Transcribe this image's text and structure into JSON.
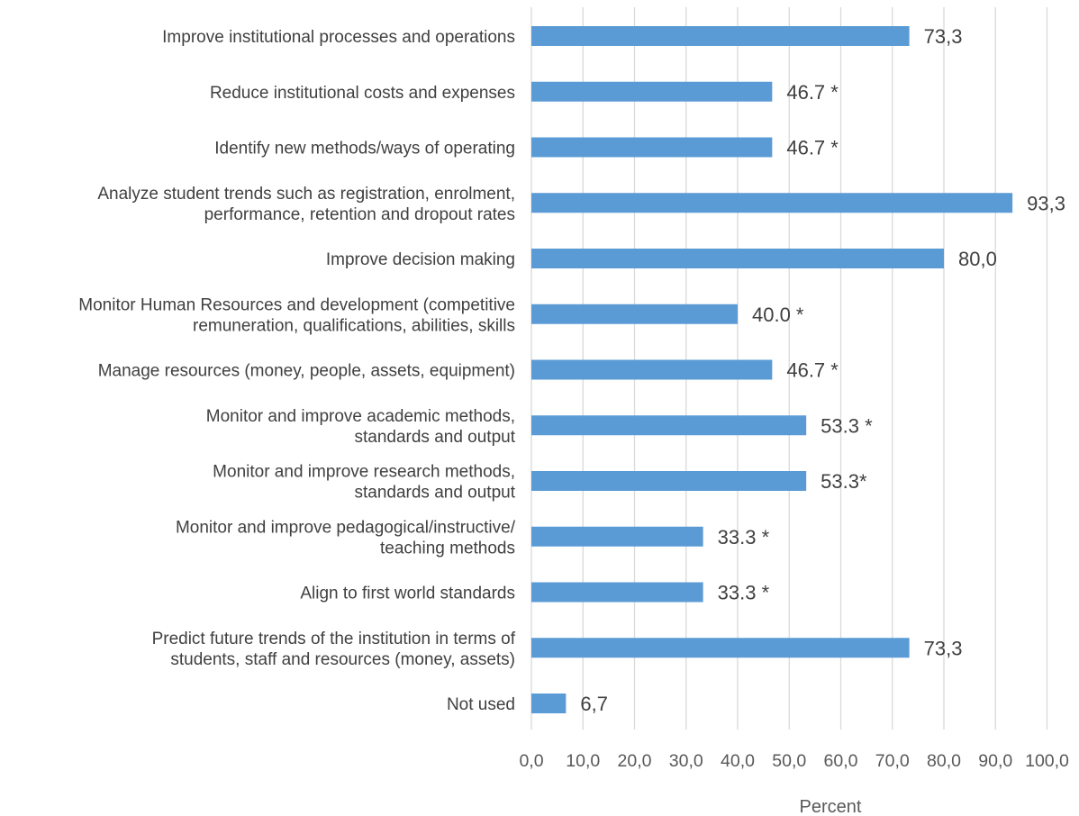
{
  "chart_data": {
    "type": "bar",
    "orientation": "horizontal",
    "categories": [
      [
        "Improve institutional processes and operations"
      ],
      [
        "Reduce institutional costs and expenses"
      ],
      [
        "Identify new methods/ways of operating"
      ],
      [
        "Analyze student trends such as registration, enrolment,",
        "performance, retention and dropout rates"
      ],
      [
        "Improve decision making"
      ],
      [
        "Monitor Human Resources and development (competitive",
        "remuneration, qualifications, abilities, skills"
      ],
      [
        "Manage resources (money, people, assets, equipment)"
      ],
      [
        "Monitor and improve academic methods,",
        "standards and output"
      ],
      [
        "Monitor and improve research methods,",
        "standards and output"
      ],
      [
        "Monitor and improve pedagogical/instructive/",
        "teaching methods"
      ],
      [
        "Align to first world standards"
      ],
      [
        "Predict future trends of the institution in terms of",
        "students, staff and resources (money, assets)"
      ],
      [
        "Not used"
      ]
    ],
    "values": [
      73.3,
      46.7,
      46.7,
      93.3,
      80.0,
      40.0,
      46.7,
      53.3,
      53.3,
      33.3,
      33.3,
      73.3,
      6.7
    ],
    "data_labels": [
      "73,3",
      "46.7 *",
      "46.7 *",
      "93,3",
      "80,0",
      "40.0 *",
      "46.7 *",
      "53.3 *",
      "53.3*",
      "33.3 *",
      "33.3 *",
      "73,3",
      "6,7"
    ],
    "xlim": [
      0,
      100
    ],
    "xticks": [
      0,
      10,
      20,
      30,
      40,
      50,
      60,
      70,
      80,
      90,
      100
    ],
    "xtick_labels": [
      "0,0",
      "10,0",
      "20,0",
      "30,0",
      "40,0",
      "50,0",
      "60,0",
      "70,0",
      "80,0",
      "90,0",
      "100,0"
    ],
    "xlabel": "Percent",
    "ylabel": "",
    "title": "",
    "grid": "vertical",
    "legend": "none",
    "bar_color": "#5b9bd5"
  }
}
